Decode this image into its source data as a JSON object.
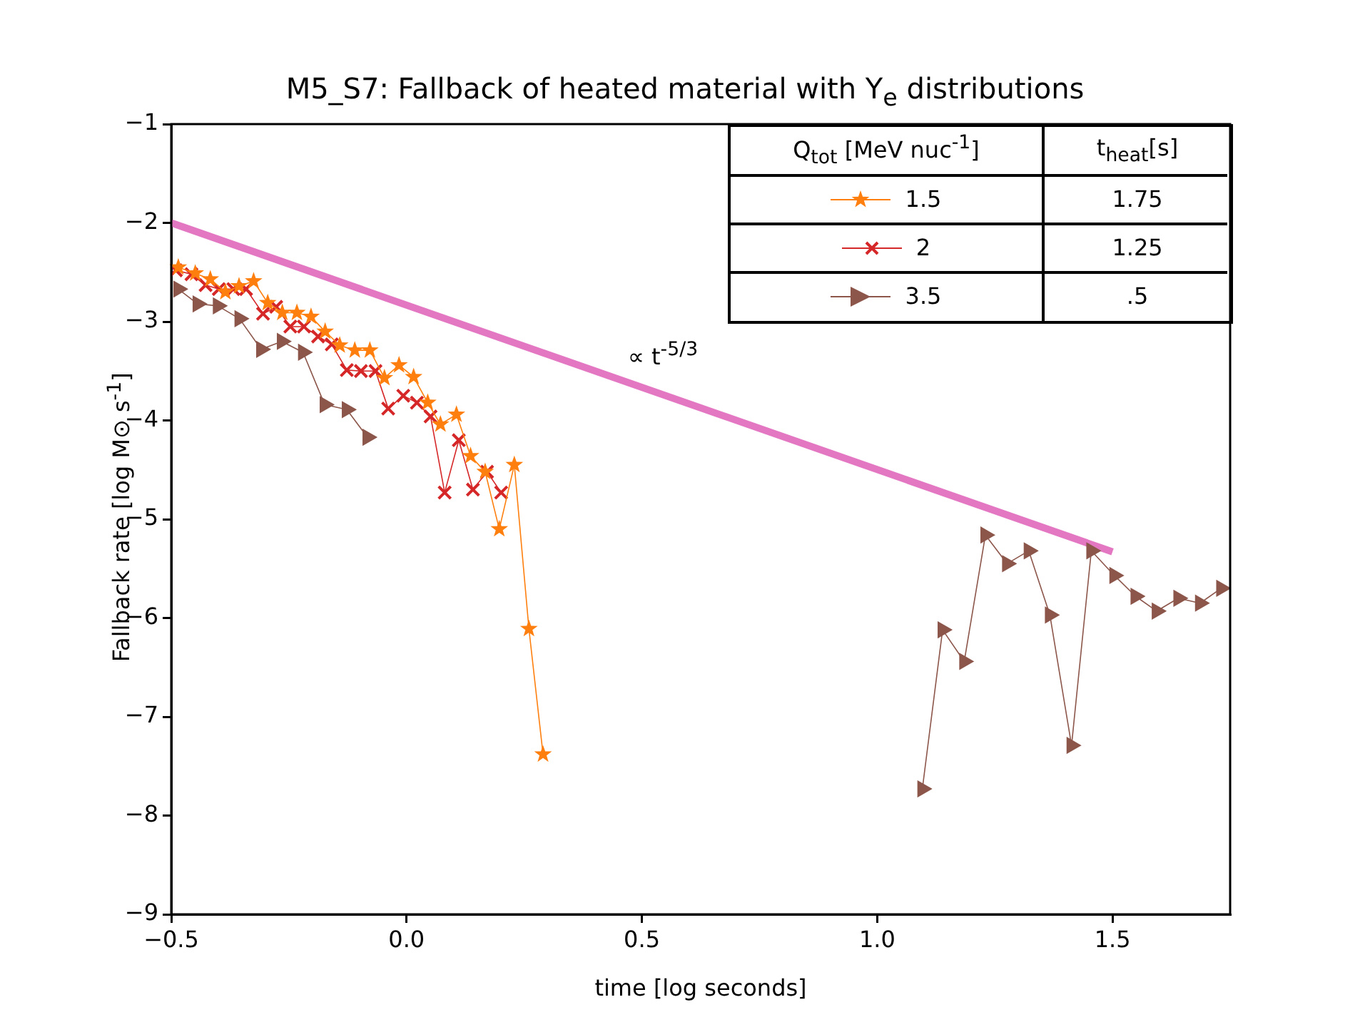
{
  "chart_data": {
    "type": "line",
    "title": "M5_S7: Fallback of heated material with Y$_{e}$ distributions",
    "xlabel": "time [log seconds]",
    "ylabel": "Fallback rate [log M⊙ s$^{-1}$]",
    "xlim": [
      -0.5,
      1.75
    ],
    "ylim": [
      -9,
      -1
    ],
    "xticks": [
      {
        "value": -0.5,
        "label": "−0.5"
      },
      {
        "value": 0,
        "label": "0.0"
      },
      {
        "value": 0.5,
        "label": "0.5"
      },
      {
        "value": 1,
        "label": "1.0"
      },
      {
        "value": 1.5,
        "label": "1.5"
      }
    ],
    "yticks": [
      {
        "value": -9,
        "label": "−9"
      },
      {
        "value": -8,
        "label": "−8"
      },
      {
        "value": -7,
        "label": "−7"
      },
      {
        "value": -6,
        "label": "−6"
      },
      {
        "value": -5,
        "label": "−5"
      },
      {
        "value": -4,
        "label": "−4"
      },
      {
        "value": -3,
        "label": "−3"
      },
      {
        "value": -2,
        "label": "−2"
      },
      {
        "value": -1,
        "label": "−1"
      }
    ],
    "grid": false,
    "legend": "top right",
    "annotations": [
      "Q$_{tot}$ [MeV nuc$^{-1}$]",
      "t$_{heat}$[s]",
      "1.75",
      "1.25",
      ".5",
      "∝ t$^{-5/3}$"
    ],
    "series": [
      {
        "name": "1.5",
        "color": "#ff7f0e",
        "marker": "star",
        "x": [
          -0.485,
          -0.449,
          -0.417,
          -0.385,
          -0.356,
          -0.325,
          -0.295,
          -0.264,
          -0.233,
          -0.203,
          -0.173,
          -0.142,
          -0.11,
          -0.078,
          -0.047,
          -0.016,
          0.015,
          0.045,
          0.072,
          0.106,
          0.136,
          0.167,
          0.197,
          0.229,
          0.26,
          0.29
        ],
        "values": [
          -2.45,
          -2.51,
          -2.57,
          -2.7,
          -2.64,
          -2.59,
          -2.81,
          -2.91,
          -2.91,
          -2.95,
          -3.1,
          -3.24,
          -3.29,
          -3.29,
          -3.57,
          -3.44,
          -3.56,
          -3.82,
          -4.04,
          -3.94,
          -4.36,
          -4.52,
          -5.1,
          -4.45,
          -6.11,
          -7.38
        ]
      },
      {
        "name": "2",
        "color": "#d62728",
        "marker": "cross",
        "x": [
          -0.49,
          -0.457,
          -0.427,
          -0.399,
          -0.368,
          -0.341,
          -0.305,
          -0.277,
          -0.247,
          -0.218,
          -0.188,
          -0.159,
          -0.127,
          -0.097,
          -0.066,
          -0.039,
          -0.007,
          0.022,
          0.051,
          0.081,
          0.111,
          0.141,
          0.171,
          0.201
        ],
        "values": [
          -2.48,
          -2.52,
          -2.63,
          -2.67,
          -2.67,
          -2.67,
          -2.92,
          -2.85,
          -3.05,
          -3.05,
          -3.15,
          -3.23,
          -3.49,
          -3.5,
          -3.5,
          -3.88,
          -3.75,
          -3.82,
          -3.96,
          -4.73,
          -4.2,
          -4.7,
          -4.52,
          -4.73
        ]
      },
      {
        "name": "3.5",
        "color": "#8c564b",
        "marker": "triangle",
        "x": [
          -0.485,
          -0.444,
          -0.401,
          -0.355,
          -0.309,
          -0.265,
          -0.22,
          -0.174,
          -0.127,
          -0.083,
          null,
          1.096,
          1.139,
          1.185,
          1.23,
          1.276,
          1.322,
          1.367,
          1.413,
          1.455,
          1.504,
          1.549,
          1.594,
          1.64,
          1.686,
          1.731
        ],
        "values": [
          -2.67,
          -2.82,
          -2.84,
          -2.97,
          -3.28,
          -3.2,
          -3.31,
          -3.84,
          -3.89,
          -4.17,
          null,
          -7.73,
          -6.12,
          -6.44,
          -5.16,
          -5.45,
          -5.32,
          -5.97,
          -7.29,
          -5.32,
          -5.57,
          -5.78,
          -5.93,
          -5.8,
          -5.85,
          -5.7
        ]
      },
      {
        "type": "line",
        "color": "#e377c2",
        "marker": "none",
        "x": [
          -0.5,
          1.5
        ],
        "values": [
          -2,
          -5.33
        ]
      }
    ]
  }
}
